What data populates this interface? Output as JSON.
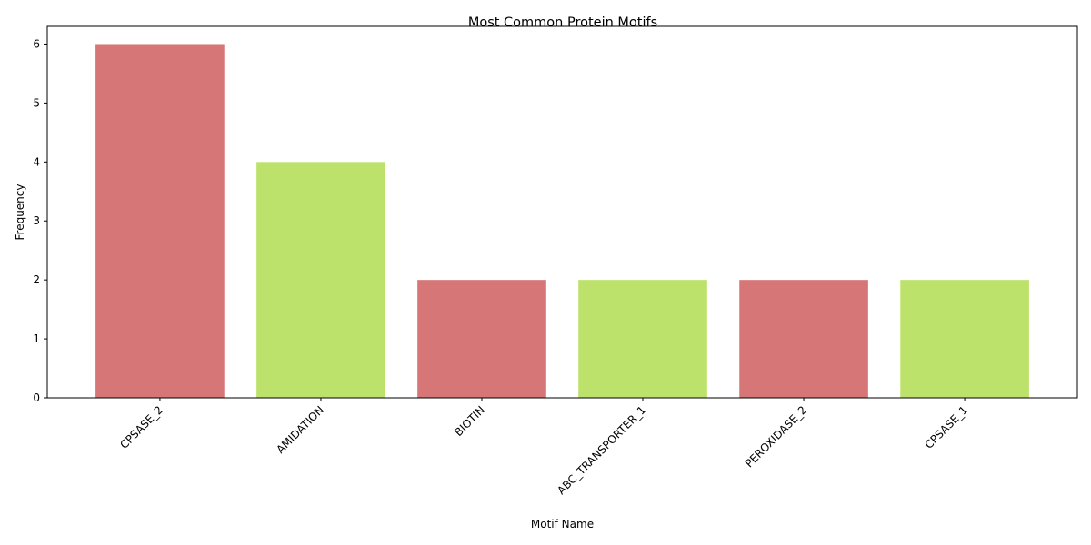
{
  "chart_data": {
    "type": "bar",
    "title": "Most Common Protein Motifs",
    "xlabel": "Motif Name",
    "ylabel": "Frequency",
    "categories": [
      "CPSASE_2",
      "AMIDATION",
      "BIOTIN",
      "ABC_TRANSPORTER_1",
      "PEROXIDASE_2",
      "CPSASE_1"
    ],
    "values": [
      6,
      4,
      2,
      2,
      2,
      2
    ],
    "colors": [
      "#d67676",
      "#bde26b",
      "#d67676",
      "#bde26b",
      "#d67676",
      "#bde26b"
    ],
    "ylim": [
      0,
      6.3
    ],
    "yticks": [
      0,
      1,
      2,
      3,
      4,
      5,
      6
    ],
    "grid": false,
    "legend": "none"
  }
}
